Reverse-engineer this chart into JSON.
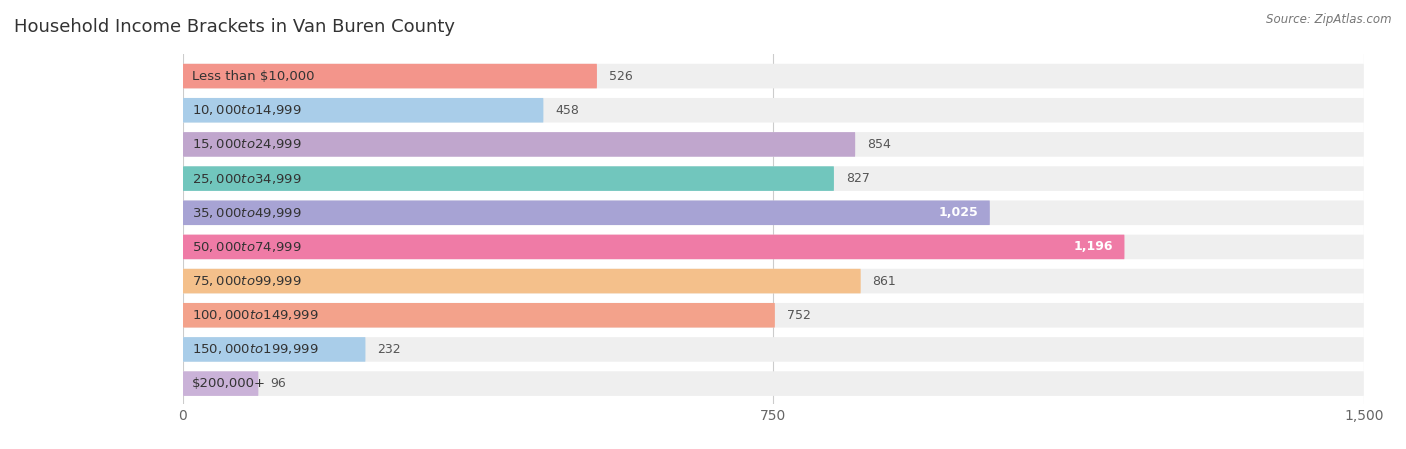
{
  "title": "Household Income Brackets in Van Buren County",
  "source": "Source: ZipAtlas.com",
  "categories": [
    "Less than $10,000",
    "$10,000 to $14,999",
    "$15,000 to $24,999",
    "$25,000 to $34,999",
    "$35,000 to $49,999",
    "$50,000 to $74,999",
    "$75,000 to $99,999",
    "$100,000 to $149,999",
    "$150,000 to $199,999",
    "$200,000+"
  ],
  "values": [
    526,
    458,
    854,
    827,
    1025,
    1196,
    861,
    752,
    232,
    96
  ],
  "bar_colors": [
    "#F4857A",
    "#9DC8E8",
    "#B89AC8",
    "#5BBFB5",
    "#9B96D0",
    "#F0679A",
    "#F5B87A",
    "#F4957A",
    "#9DC8E8",
    "#C4A8D4"
  ],
  "xlim": [
    0,
    1500
  ],
  "xticks": [
    0,
    750,
    1500
  ],
  "background_color": "#FFFFFF",
  "bar_bg_color": "#EFEFEF",
  "title_fontsize": 13,
  "label_fontsize": 9.5,
  "value_fontsize": 9
}
